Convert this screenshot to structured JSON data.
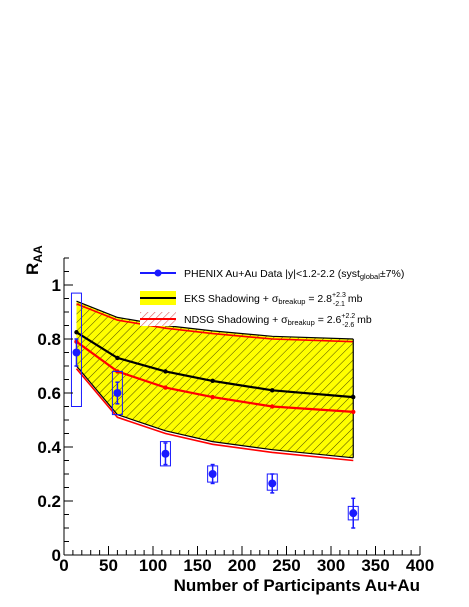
{
  "chart_data": {
    "type": "line",
    "xlabel": "Number of Participants Au+Au",
    "ylabel": "R",
    "ylabel_sub": "AA",
    "xlim": [
      0,
      400
    ],
    "ylim": [
      0,
      1.1
    ],
    "x_ticks": [
      0,
      50,
      100,
      150,
      200,
      250,
      300,
      350,
      400
    ],
    "x_tick_labels": [
      "0",
      "50",
      "100",
      "150",
      "200",
      "250",
      "300",
      "350",
      "400"
    ],
    "y_ticks": [
      0,
      0.2,
      0.4,
      0.6,
      0.8,
      1
    ],
    "y_tick_labels": [
      "0",
      "0.2",
      "0.4",
      "0.6",
      "0.8",
      "1"
    ],
    "grid": false,
    "legend_position": "top-right",
    "series": [
      {
        "name": "PHENIX Au+Au Data |y|<1.2-2.2 (syst_global±7%)",
        "kind": "data",
        "color": "#1a1aff",
        "points": [
          {
            "x": 14,
            "y": 0.75,
            "err_lo": 0.05,
            "err_hi": 0.05,
            "box_lo": 0.55,
            "box_hi": 0.97
          },
          {
            "x": 60,
            "y": 0.6,
            "err_lo": 0.04,
            "err_hi": 0.04,
            "box_lo": 0.52,
            "box_hi": 0.68
          },
          {
            "x": 114,
            "y": 0.375,
            "err_lo": 0.04,
            "err_hi": 0.04,
            "box_lo": 0.33,
            "box_hi": 0.42
          },
          {
            "x": 167,
            "y": 0.3,
            "err_lo": 0.035,
            "err_hi": 0.035,
            "box_lo": 0.27,
            "box_hi": 0.33
          },
          {
            "x": 234,
            "y": 0.265,
            "err_lo": 0.035,
            "err_hi": 0.035,
            "box_lo": 0.24,
            "box_hi": 0.3
          },
          {
            "x": 325,
            "y": 0.155,
            "err_lo": 0.055,
            "err_hi": 0.055,
            "box_lo": 0.13,
            "box_hi": 0.18
          }
        ]
      },
      {
        "name": "EKS Shadowing + σ_breakup = 2.8 +2.3 −2.1 mb",
        "kind": "band",
        "fill": "#ffff00",
        "line_color": "#000000",
        "x": [
          14,
          60,
          114,
          167,
          234,
          325
        ],
        "central": [
          0.825,
          0.73,
          0.68,
          0.645,
          0.61,
          0.585
        ],
        "upper": [
          0.94,
          0.88,
          0.85,
          0.83,
          0.81,
          0.8
        ],
        "lower": [
          0.7,
          0.52,
          0.46,
          0.42,
          0.39,
          0.36
        ]
      },
      {
        "name": "NDSG Shadowing + σ_breakup = 2.6 +2.2 −2.6 mb",
        "kind": "band",
        "hatch": "#e06060",
        "line_color": "#ff0000",
        "x": [
          14,
          60,
          114,
          167,
          234,
          325
        ],
        "central": [
          0.79,
          0.68,
          0.62,
          0.585,
          0.55,
          0.53
        ],
        "upper": [
          0.93,
          0.87,
          0.84,
          0.82,
          0.8,
          0.79
        ],
        "lower": [
          0.69,
          0.51,
          0.45,
          0.41,
          0.38,
          0.35
        ]
      }
    ],
    "legend": {
      "data_label": "PHENIX Au+Au Data |y|<1.2-2.2 (syst",
      "data_sub": "global",
      "data_suffix": "±7%)",
      "eks_label": "EKS Shadowing + σ",
      "eks_sub": "breakup",
      "eks_value": " = 2.8",
      "eks_sup": "+2.3",
      "eks_inf": "-2.1",
      "eks_unit": " mb",
      "ndsg_label": "NDSG Shadowing + σ",
      "ndsg_sub": "breakup",
      "ndsg_value": " = 2.6",
      "ndsg_sup": "+2.2",
      "ndsg_inf": "-2.6",
      "ndsg_unit": " mb"
    }
  }
}
